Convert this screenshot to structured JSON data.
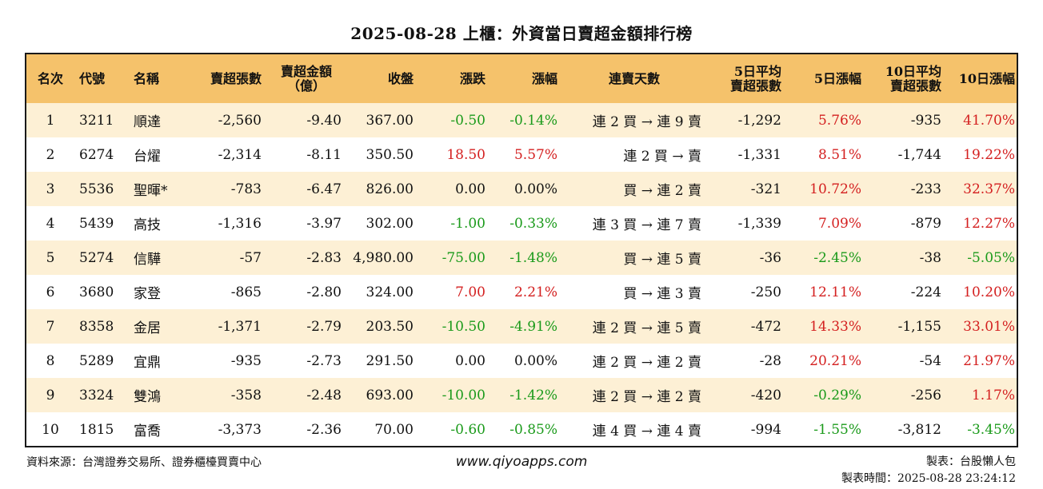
{
  "title": "2025-08-28 上櫃：外資當日賣超金額排行榜",
  "colors": {
    "header_bg": "#f5c26b",
    "odd_row_bg": "#fdf0d5",
    "positive": "#d42020",
    "negative": "#1a9a1a"
  },
  "headers": [
    {
      "line1": "名次",
      "line2": ""
    },
    {
      "line1": "代號",
      "line2": ""
    },
    {
      "line1": "名稱",
      "line2": ""
    },
    {
      "line1": "賣超張數",
      "line2": ""
    },
    {
      "line1": "賣超金額",
      "line2": "（億）"
    },
    {
      "line1": "收盤",
      "line2": ""
    },
    {
      "line1": "漲跌",
      "line2": ""
    },
    {
      "line1": "漲幅",
      "line2": ""
    },
    {
      "line1": "連賣天數",
      "line2": ""
    },
    {
      "line1": "5日平均",
      "line2": "賣超張數"
    },
    {
      "line1": "5日漲幅",
      "line2": ""
    },
    {
      "line1": "10日平均",
      "line2": "賣超張數"
    },
    {
      "line1": "10日漲幅",
      "line2": ""
    }
  ],
  "rows": [
    {
      "rank": "1",
      "code": "3211",
      "name": "順達",
      "sell_lots": "-2,560",
      "sell_amount": "-9.40",
      "close": "367.00",
      "change": "-0.50",
      "pct": "-0.14%",
      "streak": "連 2 買 → 連 9 賣",
      "avg5": "-1,292",
      "pct5": "5.76%",
      "avg10": "-935",
      "pct10": "41.70%"
    },
    {
      "rank": "2",
      "code": "6274",
      "name": "台燿",
      "sell_lots": "-2,314",
      "sell_amount": "-8.11",
      "close": "350.50",
      "change": "18.50",
      "pct": "5.57%",
      "streak": "連 2 買 → 賣",
      "avg5": "-1,331",
      "pct5": "8.51%",
      "avg10": "-1,744",
      "pct10": "19.22%"
    },
    {
      "rank": "3",
      "code": "5536",
      "name": "聖暉*",
      "sell_lots": "-783",
      "sell_amount": "-6.47",
      "close": "826.00",
      "change": "0.00",
      "pct": "0.00%",
      "streak": "買 → 連 2 賣",
      "avg5": "-321",
      "pct5": "10.72%",
      "avg10": "-233",
      "pct10": "32.37%"
    },
    {
      "rank": "4",
      "code": "5439",
      "name": "高技",
      "sell_lots": "-1,316",
      "sell_amount": "-3.97",
      "close": "302.00",
      "change": "-1.00",
      "pct": "-0.33%",
      "streak": "連 3 買 → 連 7 賣",
      "avg5": "-1,339",
      "pct5": "7.09%",
      "avg10": "-879",
      "pct10": "12.27%"
    },
    {
      "rank": "5",
      "code": "5274",
      "name": "信驊",
      "sell_lots": "-57",
      "sell_amount": "-2.83",
      "close": "4,980.00",
      "change": "-75.00",
      "pct": "-1.48%",
      "streak": "買 → 連 5 賣",
      "avg5": "-36",
      "pct5": "-2.45%",
      "avg10": "-38",
      "pct10": "-5.05%"
    },
    {
      "rank": "6",
      "code": "3680",
      "name": "家登",
      "sell_lots": "-865",
      "sell_amount": "-2.80",
      "close": "324.00",
      "change": "7.00",
      "pct": "2.21%",
      "streak": "買 → 連 3 賣",
      "avg5": "-250",
      "pct5": "12.11%",
      "avg10": "-224",
      "pct10": "10.20%"
    },
    {
      "rank": "7",
      "code": "8358",
      "name": "金居",
      "sell_lots": "-1,371",
      "sell_amount": "-2.79",
      "close": "203.50",
      "change": "-10.50",
      "pct": "-4.91%",
      "streak": "連 2 買 → 連 5 賣",
      "avg5": "-472",
      "pct5": "14.33%",
      "avg10": "-1,155",
      "pct10": "33.01%"
    },
    {
      "rank": "8",
      "code": "5289",
      "name": "宜鼎",
      "sell_lots": "-935",
      "sell_amount": "-2.73",
      "close": "291.50",
      "change": "0.00",
      "pct": "0.00%",
      "streak": "連 2 買 → 連 2 賣",
      "avg5": "-28",
      "pct5": "20.21%",
      "avg10": "-54",
      "pct10": "21.97%"
    },
    {
      "rank": "9",
      "code": "3324",
      "name": "雙鴻",
      "sell_lots": "-358",
      "sell_amount": "-2.48",
      "close": "693.00",
      "change": "-10.00",
      "pct": "-1.42%",
      "streak": "連 2 買 → 連 2 賣",
      "avg5": "-420",
      "pct5": "-0.29%",
      "avg10": "-256",
      "pct10": "1.17%"
    },
    {
      "rank": "10",
      "code": "1815",
      "name": "富喬",
      "sell_lots": "-3,373",
      "sell_amount": "-2.36",
      "close": "70.00",
      "change": "-0.60",
      "pct": "-0.85%",
      "streak": "連 4 買 → 連 4 賣",
      "avg5": "-994",
      "pct5": "-1.55%",
      "avg10": "-3,812",
      "pct10": "-3.45%"
    }
  ],
  "footer": {
    "source": "資料來源：台灣證券交易所、證券櫃檯買賣中心",
    "website": "www.qiyoapps.com",
    "maker": "製表：台股懶人包",
    "made_time": "製表時間：2025-08-28 23:24:12"
  }
}
